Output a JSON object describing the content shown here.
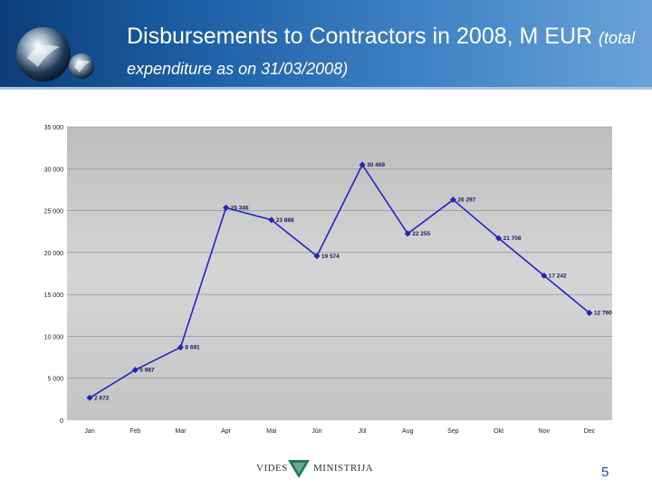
{
  "slide": {
    "title_main": "Disbursements to Contractors in 2008, M EUR",
    "title_sub": "(total expenditure as on 31/03/2008)",
    "page_number": "5",
    "footer_left": "VIDES",
    "footer_right": "MINISTRIJA"
  },
  "colors": {
    "header_dark": "#0b3d78",
    "line": "#2323c8",
    "plot_bg": "#c9c9c9"
  },
  "chart_data": {
    "type": "line",
    "categories": [
      "Jan",
      "Feb",
      "Mar",
      "Apr",
      "Mai",
      "Jūn",
      "Jūl",
      "Aug",
      "Sep",
      "Okt",
      "Nov",
      "Dec"
    ],
    "values": [
      2672,
      5987,
      8691,
      25346,
      23888,
      19574,
      30469,
      22255,
      26297,
      21708,
      17242,
      12790
    ],
    "value_labels": [
      "2 672",
      "5 987",
      "8 691",
      "25 346",
      "23 888",
      "19 574",
      "30 469",
      "22 255",
      "26 297",
      "21 708",
      "17 242",
      "12 790"
    ],
    "ylim": [
      0,
      35000
    ],
    "yticks": [
      0,
      5000,
      10000,
      15000,
      20000,
      25000,
      30000,
      35000
    ],
    "ytick_labels": [
      "0",
      "5 000",
      "10 000",
      "15 000",
      "20 000",
      "25 000",
      "30 000",
      "35 000"
    ],
    "grid": true,
    "legend": "none"
  }
}
